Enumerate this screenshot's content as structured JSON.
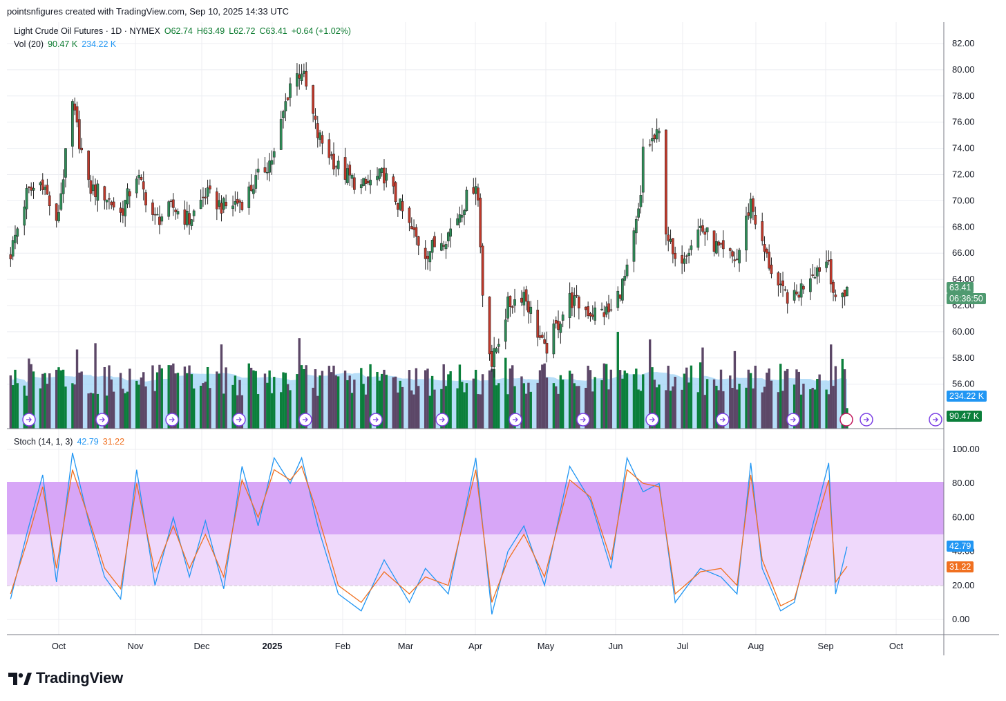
{
  "caption": "pointsnfigures created with TradingView.com, Sep 10, 2025 14:33 UTC",
  "legend": {
    "title": "Light Crude Oil Futures · 1D · NYMEX",
    "open": "O62.74",
    "high": "H63.49",
    "low": "L62.72",
    "close": "C63.41",
    "change": "+0.64 (+1.02%)",
    "vol_label": "Vol (20)",
    "vol_value": "90.47 K",
    "vol_ma": "234.22 K",
    "stoch_label": "Stoch (14, 1, 3)",
    "stoch_k": "42.79",
    "stoch_d": "31.22"
  },
  "badges": {
    "price": "63.41",
    "countdown": "06:36:50",
    "vol_ma": "234.22 K",
    "vol": "90.47 K",
    "stoch_k": "42.79",
    "stoch_d": "31.22"
  },
  "brand": "TradingView",
  "colors": {
    "up": "#2e8b57",
    "down": "#c0392b",
    "vol_up": "#0b7f3b",
    "vol_down": "#5c4767",
    "vol_ma_fill": "#9fd3f5",
    "stoch_k": "#2196f3",
    "stoch_d": "#f07020",
    "band_fill": "#d7a6f7",
    "zone_fill": "#efd9fb"
  },
  "chart_data": [
    {
      "type": "candlestick",
      "title": "Light Crude Oil Futures · 1D · NYMEX",
      "x_tick_labels": [
        "Oct",
        "Nov",
        "Dec",
        "2025",
        "Feb",
        "Mar",
        "Apr",
        "May",
        "Jun",
        "Jul",
        "Aug",
        "Sep",
        "Oct"
      ],
      "y_tick_labels": [
        "56.00",
        "58.00",
        "60.00",
        "62.00",
        "64.00",
        "66.00",
        "68.00",
        "70.00",
        "72.00",
        "74.00",
        "76.00",
        "78.00",
        "80.00",
        "82.00"
      ],
      "ylim": [
        55,
        83
      ],
      "grid": true,
      "last": {
        "open": 62.74,
        "high": 63.49,
        "low": 62.72,
        "close": 63.41
      },
      "close_path": [
        {
          "x": "2024-09-10",
          "y": 66
        },
        {
          "x": "2024-09-17",
          "y": 70.5
        },
        {
          "x": "2024-09-24",
          "y": 71.5
        },
        {
          "x": "2024-09-30",
          "y": 68
        },
        {
          "x": "2024-10-07",
          "y": 77.3
        },
        {
          "x": "2024-10-14",
          "y": 71
        },
        {
          "x": "2024-10-21",
          "y": 70.5
        },
        {
          "x": "2024-10-28",
          "y": 69
        },
        {
          "x": "2024-11-04",
          "y": 72
        },
        {
          "x": "2024-11-12",
          "y": 68.5
        },
        {
          "x": "2024-11-20",
          "y": 69.5
        },
        {
          "x": "2024-11-27",
          "y": 68.5
        },
        {
          "x": "2024-12-04",
          "y": 70.5
        },
        {
          "x": "2024-12-12",
          "y": 69.5
        },
        {
          "x": "2024-12-20",
          "y": 70
        },
        {
          "x": "2025-01-03",
          "y": 73.5
        },
        {
          "x": "2025-01-10",
          "y": 79
        },
        {
          "x": "2025-01-15",
          "y": 80
        },
        {
          "x": "2025-01-22",
          "y": 75
        },
        {
          "x": "2025-01-31",
          "y": 72.5
        },
        {
          "x": "2025-02-10",
          "y": 71
        },
        {
          "x": "2025-02-20",
          "y": 72
        },
        {
          "x": "2025-03-03",
          "y": 68
        },
        {
          "x": "2025-03-10",
          "y": 66
        },
        {
          "x": "2025-03-20",
          "y": 67.5
        },
        {
          "x": "2025-04-01",
          "y": 71.5
        },
        {
          "x": "2025-04-02",
          "y": 70
        },
        {
          "x": "2025-04-04",
          "y": 63
        },
        {
          "x": "2025-04-08",
          "y": 57.5
        },
        {
          "x": "2025-04-15",
          "y": 62
        },
        {
          "x": "2025-04-22",
          "y": 63
        },
        {
          "x": "2025-05-01",
          "y": 58.5
        },
        {
          "x": "2025-05-12",
          "y": 62.5
        },
        {
          "x": "2025-05-21",
          "y": 61.5
        },
        {
          "x": "2025-05-30",
          "y": 61.5
        },
        {
          "x": "2025-06-06",
          "y": 64.5
        },
        {
          "x": "2025-06-12",
          "y": 70
        },
        {
          "x": "2025-06-13",
          "y": 74
        },
        {
          "x": "2025-06-20",
          "y": 75
        },
        {
          "x": "2025-06-23",
          "y": 68
        },
        {
          "x": "2025-06-27",
          "y": 65
        },
        {
          "x": "2025-07-08",
          "y": 68
        },
        {
          "x": "2025-07-17",
          "y": 66
        },
        {
          "x": "2025-07-24",
          "y": 65.5
        },
        {
          "x": "2025-07-30",
          "y": 70
        },
        {
          "x": "2025-08-04",
          "y": 66.5
        },
        {
          "x": "2025-08-12",
          "y": 63
        },
        {
          "x": "2025-08-18",
          "y": 62.5
        },
        {
          "x": "2025-08-25",
          "y": 64.5
        },
        {
          "x": "2025-09-02",
          "y": 65.5
        },
        {
          "x": "2025-09-05",
          "y": 62
        },
        {
          "x": "2025-09-10",
          "y": 63.41
        }
      ]
    },
    {
      "type": "bar",
      "title": "Vol (20)",
      "last": {
        "volume": "90.47 K",
        "ma": "234.22 K"
      }
    },
    {
      "type": "line",
      "title": "Stoch (14, 1, 3)",
      "y_tick_labels": [
        "0.00",
        "20.00",
        "40.00",
        "60.00",
        "80.00",
        "100.00"
      ],
      "ylim": [
        -5,
        105
      ],
      "bands": [
        20,
        50,
        80
      ],
      "series": [
        {
          "name": "%K",
          "last": 42.79,
          "values": [
            {
              "x": "2024-09-10",
              "y": 12
            },
            {
              "x": "2024-09-17",
              "y": 50
            },
            {
              "x": "2024-09-24",
              "y": 85
            },
            {
              "x": "2024-09-30",
              "y": 22
            },
            {
              "x": "2024-10-07",
              "y": 98
            },
            {
              "x": "2024-10-14",
              "y": 58
            },
            {
              "x": "2024-10-21",
              "y": 25
            },
            {
              "x": "2024-10-28",
              "y": 12
            },
            {
              "x": "2024-11-04",
              "y": 88
            },
            {
              "x": "2024-11-12",
              "y": 20
            },
            {
              "x": "2024-11-20",
              "y": 60
            },
            {
              "x": "2024-11-27",
              "y": 25
            },
            {
              "x": "2024-12-04",
              "y": 58
            },
            {
              "x": "2024-12-12",
              "y": 18
            },
            {
              "x": "2024-12-20",
              "y": 90
            },
            {
              "x": "2024-12-27",
              "y": 55
            },
            {
              "x": "2025-01-03",
              "y": 95
            },
            {
              "x": "2025-01-10",
              "y": 80
            },
            {
              "x": "2025-01-15",
              "y": 95
            },
            {
              "x": "2025-01-22",
              "y": 55
            },
            {
              "x": "2025-01-31",
              "y": 15
            },
            {
              "x": "2025-02-10",
              "y": 5
            },
            {
              "x": "2025-02-20",
              "y": 35
            },
            {
              "x": "2025-03-03",
              "y": 10
            },
            {
              "x": "2025-03-10",
              "y": 30
            },
            {
              "x": "2025-03-20",
              "y": 15
            },
            {
              "x": "2025-04-01",
              "y": 95
            },
            {
              "x": "2025-04-08",
              "y": 3
            },
            {
              "x": "2025-04-15",
              "y": 40
            },
            {
              "x": "2025-04-22",
              "y": 55
            },
            {
              "x": "2025-05-01",
              "y": 20
            },
            {
              "x": "2025-05-12",
              "y": 90
            },
            {
              "x": "2025-05-21",
              "y": 70
            },
            {
              "x": "2025-05-30",
              "y": 30
            },
            {
              "x": "2025-06-06",
              "y": 95
            },
            {
              "x": "2025-06-13",
              "y": 75
            },
            {
              "x": "2025-06-20",
              "y": 80
            },
            {
              "x": "2025-06-27",
              "y": 10
            },
            {
              "x": "2025-07-08",
              "y": 30
            },
            {
              "x": "2025-07-17",
              "y": 25
            },
            {
              "x": "2025-07-24",
              "y": 15
            },
            {
              "x": "2025-07-30",
              "y": 92
            },
            {
              "x": "2025-08-04",
              "y": 30
            },
            {
              "x": "2025-08-12",
              "y": 5
            },
            {
              "x": "2025-08-18",
              "y": 10
            },
            {
              "x": "2025-08-25",
              "y": 50
            },
            {
              "x": "2025-09-02",
              "y": 92
            },
            {
              "x": "2025-09-05",
              "y": 15
            },
            {
              "x": "2025-09-10",
              "y": 42.79
            }
          ]
        },
        {
          "name": "%D",
          "last": 31.22,
          "values": [
            {
              "x": "2024-09-10",
              "y": 15
            },
            {
              "x": "2024-09-17",
              "y": 45
            },
            {
              "x": "2024-09-24",
              "y": 78
            },
            {
              "x": "2024-09-30",
              "y": 30
            },
            {
              "x": "2024-10-07",
              "y": 88
            },
            {
              "x": "2024-10-14",
              "y": 60
            },
            {
              "x": "2024-10-21",
              "y": 30
            },
            {
              "x": "2024-10-28",
              "y": 18
            },
            {
              "x": "2024-11-04",
              "y": 80
            },
            {
              "x": "2024-11-12",
              "y": 28
            },
            {
              "x": "2024-11-20",
              "y": 55
            },
            {
              "x": "2024-11-27",
              "y": 30
            },
            {
              "x": "2024-12-04",
              "y": 50
            },
            {
              "x": "2024-12-12",
              "y": 25
            },
            {
              "x": "2024-12-20",
              "y": 82
            },
            {
              "x": "2024-12-27",
              "y": 60
            },
            {
              "x": "2025-01-03",
              "y": 88
            },
            {
              "x": "2025-01-10",
              "y": 82
            },
            {
              "x": "2025-01-15",
              "y": 90
            },
            {
              "x": "2025-01-22",
              "y": 62
            },
            {
              "x": "2025-01-31",
              "y": 20
            },
            {
              "x": "2025-02-10",
              "y": 10
            },
            {
              "x": "2025-02-20",
              "y": 28
            },
            {
              "x": "2025-03-03",
              "y": 15
            },
            {
              "x": "2025-03-10",
              "y": 25
            },
            {
              "x": "2025-03-20",
              "y": 20
            },
            {
              "x": "2025-04-01",
              "y": 88
            },
            {
              "x": "2025-04-08",
              "y": 10
            },
            {
              "x": "2025-04-15",
              "y": 35
            },
            {
              "x": "2025-04-22",
              "y": 50
            },
            {
              "x": "2025-05-01",
              "y": 25
            },
            {
              "x": "2025-05-12",
              "y": 82
            },
            {
              "x": "2025-05-21",
              "y": 72
            },
            {
              "x": "2025-05-30",
              "y": 35
            },
            {
              "x": "2025-06-06",
              "y": 88
            },
            {
              "x": "2025-06-13",
              "y": 80
            },
            {
              "x": "2025-06-20",
              "y": 78
            },
            {
              "x": "2025-06-27",
              "y": 15
            },
            {
              "x": "2025-07-08",
              "y": 28
            },
            {
              "x": "2025-07-17",
              "y": 30
            },
            {
              "x": "2025-07-24",
              "y": 20
            },
            {
              "x": "2025-07-30",
              "y": 85
            },
            {
              "x": "2025-08-04",
              "y": 35
            },
            {
              "x": "2025-08-12",
              "y": 8
            },
            {
              "x": "2025-08-18",
              "y": 12
            },
            {
              "x": "2025-08-25",
              "y": 45
            },
            {
              "x": "2025-09-02",
              "y": 82
            },
            {
              "x": "2025-09-05",
              "y": 22
            },
            {
              "x": "2025-09-10",
              "y": 31.22
            }
          ]
        }
      ]
    }
  ]
}
